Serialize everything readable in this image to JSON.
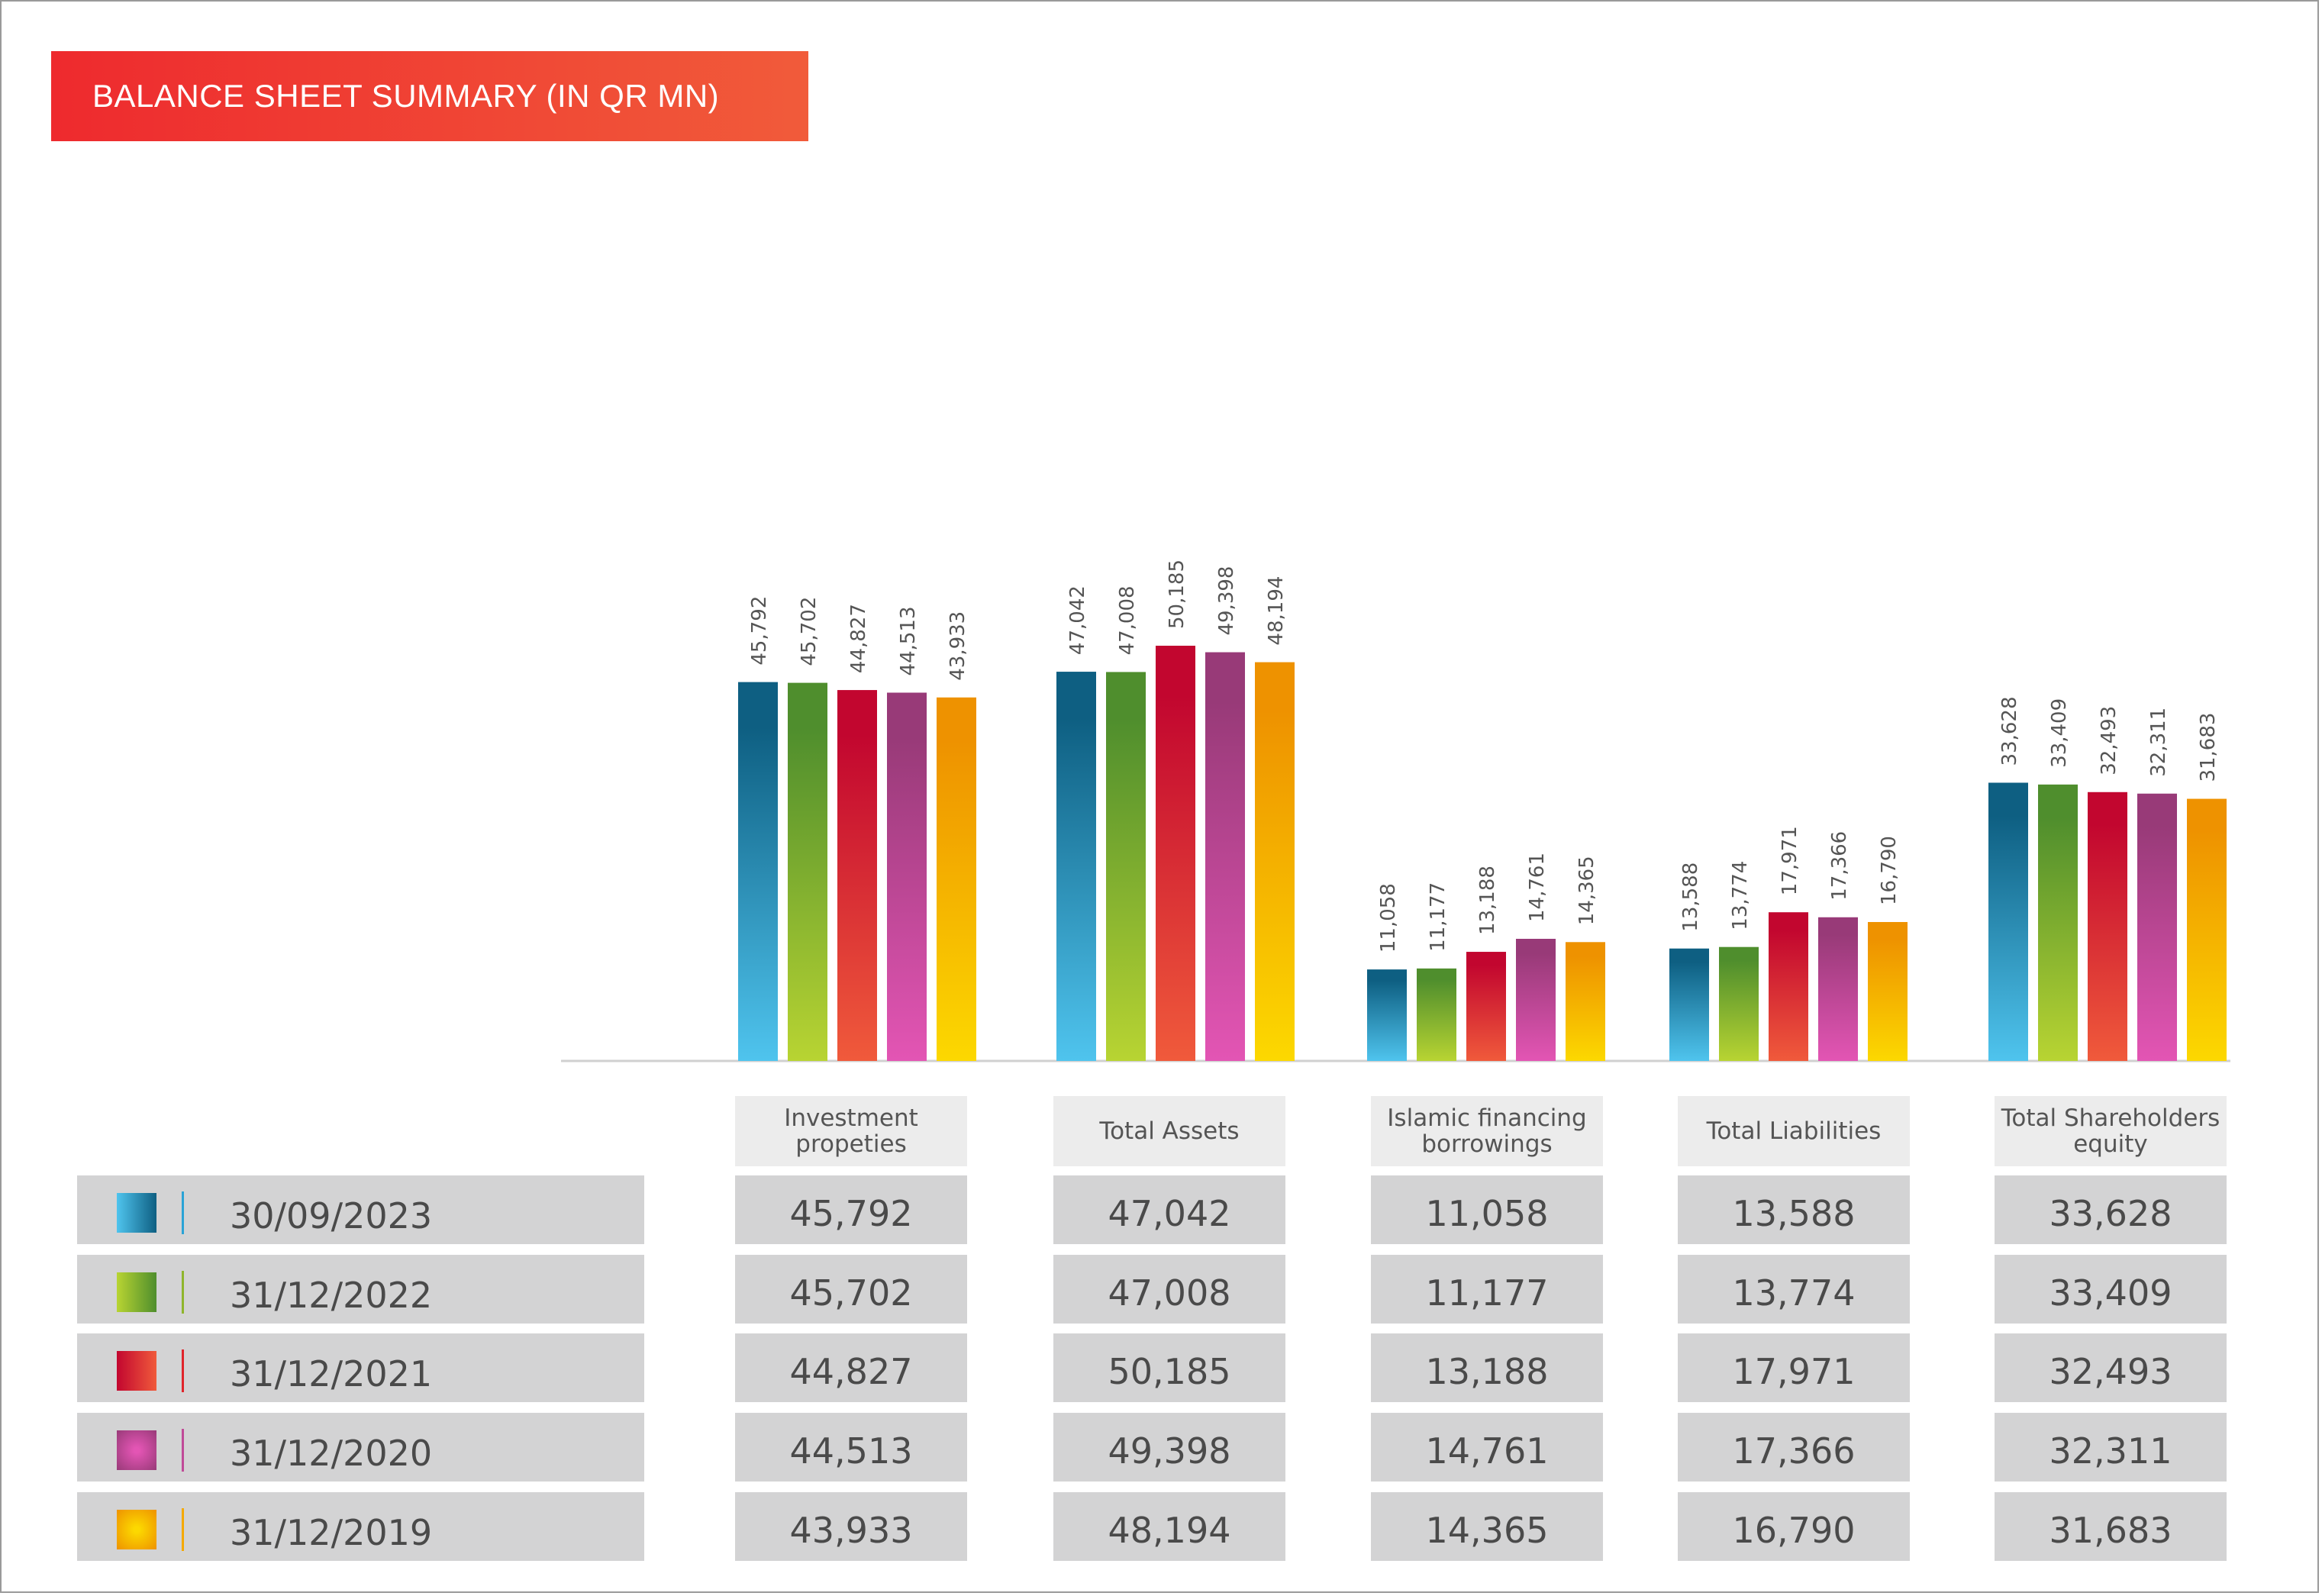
{
  "title": "BALANCE SHEET SUMMARY (IN QR MN)",
  "chart_data": {
    "type": "bar",
    "categories": [
      "Investment propeties",
      "Total Assets",
      "Islamic financing borrowings",
      "Total Liabilities",
      "Total Shareholders equity"
    ],
    "series": [
      {
        "name": "30/09/2023",
        "values": [
          45792,
          47042,
          11058,
          13588,
          33628
        ],
        "display": [
          "45,792",
          "47,042",
          "11,058",
          "13,588",
          "33,628"
        ],
        "color": "#0e5f82"
      },
      {
        "name": "31/12/2022",
        "values": [
          45702,
          47008,
          11177,
          13774,
          33409
        ],
        "display": [
          "45,702",
          "47,008",
          "11,177",
          "13,774",
          "33,409"
        ],
        "color": "#4f8e2d"
      },
      {
        "name": "31/12/2021",
        "values": [
          44827,
          50185,
          13188,
          17971,
          32493
        ],
        "display": [
          "44,827",
          "50,185",
          "13,188",
          "17,971",
          "32,493"
        ],
        "color": "#c2062f"
      },
      {
        "name": "31/12/2020",
        "values": [
          44513,
          49398,
          14761,
          17366,
          32311
        ],
        "display": [
          "44,513",
          "49,398",
          "14,761",
          "17,366",
          "32,311"
        ],
        "color": "#983a78"
      },
      {
        "name": "31/12/2019",
        "values": [
          43933,
          48194,
          14365,
          16790,
          31683
        ],
        "display": [
          "43,933",
          "48,194",
          "14,365",
          "16,790",
          "31,683"
        ],
        "color": "#ee9200"
      }
    ],
    "ylim": [
      0,
      100000
    ],
    "grid": false,
    "legend": "table-below"
  },
  "colors": {
    "series_top": [
      "#0e5f82",
      "#4f8e2d",
      "#c2062f",
      "#983a78",
      "#ee9200"
    ],
    "series_bottom": [
      "#4fc4ee",
      "#b8d432",
      "#f05a3b",
      "#e355b4",
      "#fcd800"
    ],
    "table_cell": "#d3d3d4",
    "header_cell": "#ececec",
    "banner": "#ee2a2e"
  }
}
